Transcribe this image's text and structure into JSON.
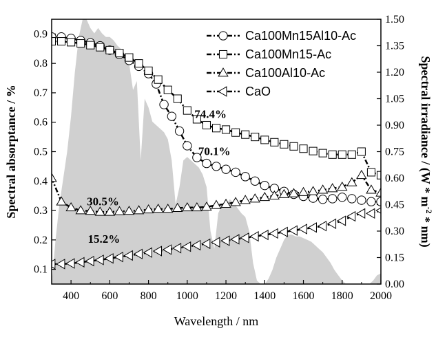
{
  "chart_data": {
    "type": "line",
    "xlabel": "Wavelength / nm",
    "ylabel_left": "Spectral absorptance / %",
    "ylabel_right_main": "Spectral irradiance / (W * m",
    "ylabel_right_sup": "-2",
    "ylabel_right_tail": " * nm)",
    "xlim": [
      300,
      2000
    ],
    "ylim_left": [
      0.05,
      0.95
    ],
    "ylim_right": [
      0,
      1.5
    ],
    "x_ticks": [
      "400",
      "600",
      "800",
      "1000",
      "1200",
      "1400",
      "1600",
      "1800",
      "2000"
    ],
    "y_left_ticks": [
      "0.1",
      "0.2",
      "0.3",
      "0.4",
      "0.5",
      "0.6",
      "0.7",
      "0.8",
      "0.9"
    ],
    "y_right_ticks": [
      "0.00",
      "0.15",
      "0.30",
      "0.45",
      "0.60",
      "0.75",
      "0.90",
      "1.05",
      "1.20",
      "1.35",
      "1.50"
    ],
    "legend_position": "top-right",
    "series": [
      {
        "name": "Ca100Mn15Al10-Ac",
        "marker": "circle",
        "points": [
          [
            300,
            0.89
          ],
          [
            350,
            0.89
          ],
          [
            400,
            0.885
          ],
          [
            450,
            0.878
          ],
          [
            500,
            0.87
          ],
          [
            550,
            0.86
          ],
          [
            600,
            0.845
          ],
          [
            650,
            0.83
          ],
          [
            700,
            0.81
          ],
          [
            750,
            0.79
          ],
          [
            800,
            0.765
          ],
          [
            840,
            0.73
          ],
          [
            880,
            0.66
          ],
          [
            920,
            0.62
          ],
          [
            960,
            0.57
          ],
          [
            1000,
            0.52
          ],
          [
            1050,
            0.48
          ],
          [
            1100,
            0.46
          ],
          [
            1150,
            0.45
          ],
          [
            1200,
            0.44
          ],
          [
            1250,
            0.43
          ],
          [
            1300,
            0.415
          ],
          [
            1350,
            0.4
          ],
          [
            1400,
            0.385
          ],
          [
            1450,
            0.375
          ],
          [
            1500,
            0.365
          ],
          [
            1550,
            0.355
          ],
          [
            1600,
            0.348
          ],
          [
            1650,
            0.342
          ],
          [
            1700,
            0.338
          ],
          [
            1750,
            0.34
          ],
          [
            1800,
            0.345
          ],
          [
            1850,
            0.34
          ],
          [
            1900,
            0.335
          ],
          [
            1950,
            0.33
          ],
          [
            2000,
            0.33
          ]
        ]
      },
      {
        "name": "Ca100Mn15-Ac",
        "marker": "square",
        "points": [
          [
            300,
            0.875
          ],
          [
            350,
            0.875
          ],
          [
            400,
            0.872
          ],
          [
            450,
            0.868
          ],
          [
            500,
            0.862
          ],
          [
            550,
            0.855
          ],
          [
            600,
            0.845
          ],
          [
            650,
            0.835
          ],
          [
            700,
            0.82
          ],
          [
            750,
            0.8
          ],
          [
            800,
            0.775
          ],
          [
            850,
            0.745
          ],
          [
            900,
            0.71
          ],
          [
            950,
            0.68
          ],
          [
            1000,
            0.64
          ],
          [
            1050,
            0.61
          ],
          [
            1100,
            0.59
          ],
          [
            1150,
            0.58
          ],
          [
            1200,
            0.575
          ],
          [
            1250,
            0.565
          ],
          [
            1300,
            0.558
          ],
          [
            1350,
            0.55
          ],
          [
            1400,
            0.54
          ],
          [
            1450,
            0.532
          ],
          [
            1500,
            0.525
          ],
          [
            1550,
            0.518
          ],
          [
            1600,
            0.51
          ],
          [
            1650,
            0.502
          ],
          [
            1700,
            0.495
          ],
          [
            1750,
            0.49
          ],
          [
            1800,
            0.49
          ],
          [
            1850,
            0.49
          ],
          [
            1900,
            0.5
          ],
          [
            1950,
            0.43
          ],
          [
            2000,
            0.42
          ]
        ]
      },
      {
        "name": "Ca100Al10-Ac",
        "marker": "triangle-up",
        "points": [
          [
            300,
            0.41
          ],
          [
            350,
            0.33
          ],
          [
            400,
            0.31
          ],
          [
            450,
            0.3
          ],
          [
            500,
            0.298
          ],
          [
            550,
            0.295
          ],
          [
            600,
            0.295
          ],
          [
            650,
            0.297
          ],
          [
            700,
            0.298
          ],
          [
            750,
            0.3
          ],
          [
            800,
            0.303
          ],
          [
            850,
            0.305
          ],
          [
            900,
            0.305
          ],
          [
            950,
            0.308
          ],
          [
            1000,
            0.31
          ],
          [
            1050,
            0.31
          ],
          [
            1100,
            0.312
          ],
          [
            1150,
            0.318
          ],
          [
            1200,
            0.322
          ],
          [
            1250,
            0.328
          ],
          [
            1300,
            0.335
          ],
          [
            1350,
            0.34
          ],
          [
            1400,
            0.345
          ],
          [
            1450,
            0.35
          ],
          [
            1500,
            0.355
          ],
          [
            1550,
            0.358
          ],
          [
            1600,
            0.362
          ],
          [
            1650,
            0.365
          ],
          [
            1700,
            0.37
          ],
          [
            1750,
            0.375
          ],
          [
            1800,
            0.38
          ],
          [
            1850,
            0.395
          ],
          [
            1900,
            0.42
          ],
          [
            1950,
            0.37
          ],
          [
            2000,
            0.36
          ]
        ]
      },
      {
        "name": "CaO",
        "marker": "triangle-left",
        "points": [
          [
            300,
            0.118
          ],
          [
            350,
            0.118
          ],
          [
            400,
            0.12
          ],
          [
            450,
            0.124
          ],
          [
            500,
            0.128
          ],
          [
            550,
            0.132
          ],
          [
            600,
            0.137
          ],
          [
            650,
            0.142
          ],
          [
            700,
            0.147
          ],
          [
            750,
            0.152
          ],
          [
            800,
            0.157
          ],
          [
            850,
            0.162
          ],
          [
            900,
            0.167
          ],
          [
            950,
            0.172
          ],
          [
            1000,
            0.177
          ],
          [
            1050,
            0.182
          ],
          [
            1100,
            0.187
          ],
          [
            1150,
            0.192
          ],
          [
            1200,
            0.197
          ],
          [
            1250,
            0.202
          ],
          [
            1300,
            0.207
          ],
          [
            1350,
            0.212
          ],
          [
            1400,
            0.217
          ],
          [
            1450,
            0.222
          ],
          [
            1500,
            0.227
          ],
          [
            1550,
            0.232
          ],
          [
            1600,
            0.237
          ],
          [
            1650,
            0.242
          ],
          [
            1700,
            0.247
          ],
          [
            1750,
            0.255
          ],
          [
            1800,
            0.265
          ],
          [
            1850,
            0.28
          ],
          [
            1900,
            0.29
          ],
          [
            1950,
            0.29
          ],
          [
            2000,
            0.3
          ]
        ]
      }
    ],
    "background_spectrum": {
      "name": "solar spectral irradiance",
      "axis": "right",
      "color": "#d0d0d0",
      "points": [
        [
          300,
          0
        ],
        [
          320,
          0.25
        ],
        [
          340,
          0.45
        ],
        [
          360,
          0.6
        ],
        [
          380,
          0.75
        ],
        [
          400,
          0.95
        ],
        [
          420,
          1.2
        ],
        [
          440,
          1.4
        ],
        [
          460,
          1.5
        ],
        [
          480,
          1.5
        ],
        [
          500,
          1.45
        ],
        [
          520,
          1.42
        ],
        [
          540,
          1.45
        ],
        [
          560,
          1.42
        ],
        [
          580,
          1.4
        ],
        [
          600,
          1.4
        ],
        [
          620,
          1.38
        ],
        [
          640,
          1.35
        ],
        [
          660,
          1.33
        ],
        [
          680,
          1.3
        ],
        [
          700,
          1.25
        ],
        [
          720,
          1.1
        ],
        [
          740,
          1.15
        ],
        [
          760,
          0.7
        ],
        [
          780,
          1.05
        ],
        [
          800,
          1.0
        ],
        [
          820,
          0.92
        ],
        [
          840,
          0.9
        ],
        [
          860,
          0.88
        ],
        [
          880,
          0.86
        ],
        [
          900,
          0.82
        ],
        [
          920,
          0.7
        ],
        [
          940,
          0.45
        ],
        [
          960,
          0.55
        ],
        [
          980,
          0.7
        ],
        [
          1000,
          0.72
        ],
        [
          1020,
          0.7
        ],
        [
          1040,
          0.68
        ],
        [
          1060,
          0.66
        ],
        [
          1080,
          0.62
        ],
        [
          1100,
          0.55
        ],
        [
          1120,
          0.3
        ],
        [
          1140,
          0.2
        ],
        [
          1160,
          0.4
        ],
        [
          1180,
          0.45
        ],
        [
          1200,
          0.45
        ],
        [
          1220,
          0.48
        ],
        [
          1240,
          0.46
        ],
        [
          1260,
          0.43
        ],
        [
          1280,
          0.4
        ],
        [
          1300,
          0.38
        ],
        [
          1320,
          0.3
        ],
        [
          1340,
          0.12
        ],
        [
          1360,
          0.02
        ],
        [
          1380,
          0.0
        ],
        [
          1400,
          0.0
        ],
        [
          1420,
          0.03
        ],
        [
          1440,
          0.08
        ],
        [
          1460,
          0.15
        ],
        [
          1480,
          0.2
        ],
        [
          1500,
          0.25
        ],
        [
          1520,
          0.28
        ],
        [
          1540,
          0.28
        ],
        [
          1560,
          0.27
        ],
        [
          1580,
          0.27
        ],
        [
          1600,
          0.26
        ],
        [
          1620,
          0.25
        ],
        [
          1640,
          0.24
        ],
        [
          1660,
          0.22
        ],
        [
          1680,
          0.2
        ],
        [
          1700,
          0.18
        ],
        [
          1720,
          0.15
        ],
        [
          1740,
          0.12
        ],
        [
          1760,
          0.08
        ],
        [
          1780,
          0.05
        ],
        [
          1800,
          0.02
        ],
        [
          1820,
          0.0
        ],
        [
          1940,
          0.0
        ],
        [
          1960,
          0.02
        ],
        [
          1980,
          0.05
        ],
        [
          2000,
          0.06
        ]
      ]
    },
    "annotations": [
      {
        "text": "74.4%",
        "x": 1120,
        "y": 0.615
      },
      {
        "text": "70.1%",
        "x": 1140,
        "y": 0.488
      },
      {
        "text": "30.5%",
        "x": 565,
        "y": 0.318
      },
      {
        "text": "15.2%",
        "x": 570,
        "y": 0.19
      }
    ]
  }
}
